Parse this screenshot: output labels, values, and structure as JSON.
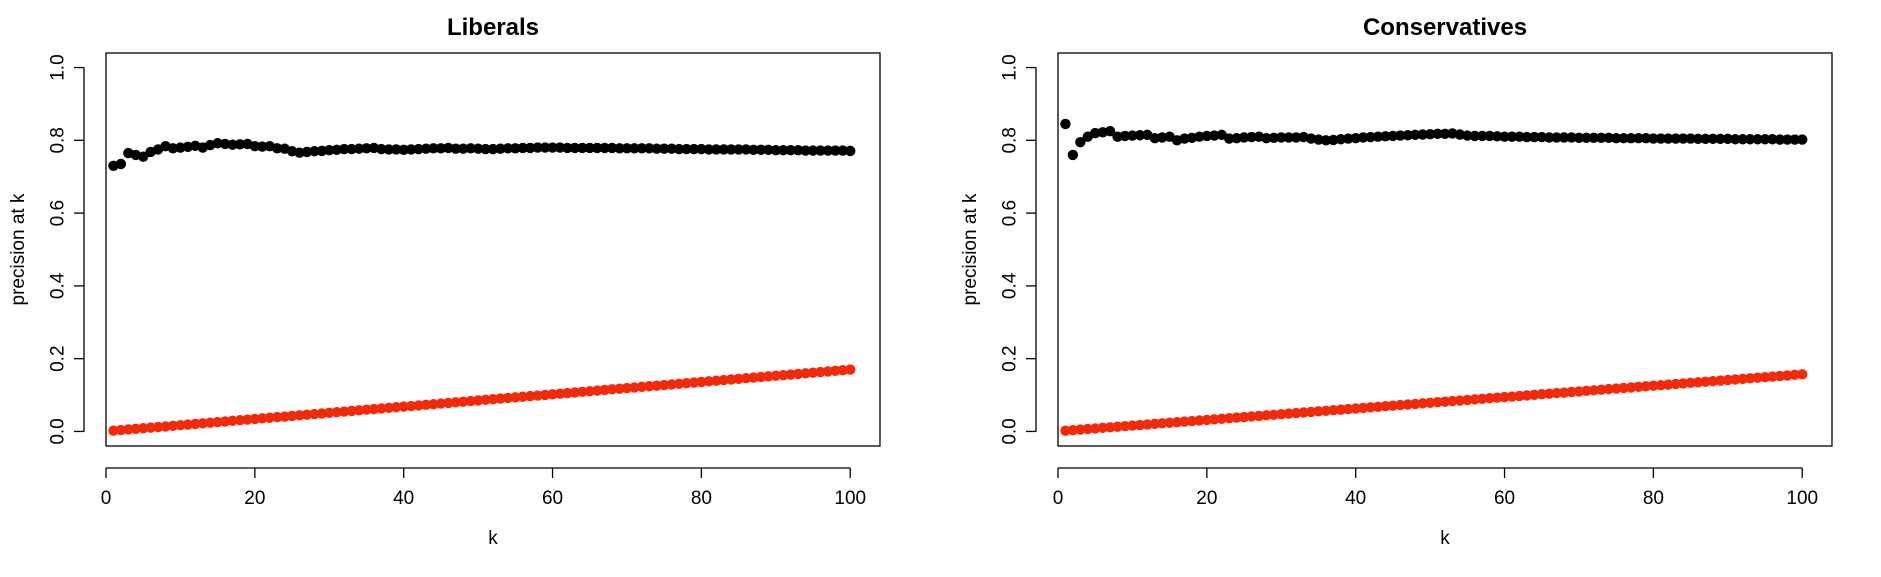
{
  "chart_data": [
    {
      "type": "scatter",
      "title": "Liberals",
      "xlabel": "k",
      "ylabel": "precision at k",
      "xlim": [
        0,
        104
      ],
      "ylim": [
        -0.04,
        1.04
      ],
      "xticks": [
        0,
        20,
        40,
        60,
        80,
        100
      ],
      "xtick_labels": [
        "0",
        "20",
        "40",
        "60",
        "80",
        "100"
      ],
      "yticks": [
        0.0,
        0.2,
        0.4,
        0.6,
        0.8,
        1.0
      ],
      "ytick_labels": [
        "0.0",
        "0.2",
        "0.4",
        "0.6",
        "0.8",
        "1.0"
      ],
      "grid": false,
      "series": [
        {
          "color": "#000000",
          "x": [
            1,
            2,
            3,
            4,
            5,
            6,
            7,
            8,
            9,
            10,
            11,
            12,
            13,
            14,
            15,
            16,
            17,
            18,
            19,
            20,
            21,
            22,
            23,
            24,
            25,
            26,
            27,
            28,
            29,
            30,
            31,
            32,
            33,
            34,
            35,
            36,
            37,
            38,
            39,
            40,
            41,
            42,
            43,
            44,
            45,
            46,
            47,
            48,
            49,
            50,
            51,
            52,
            53,
            54,
            55,
            56,
            57,
            58,
            59,
            60,
            61,
            62,
            63,
            64,
            65,
            66,
            67,
            68,
            69,
            70,
            71,
            72,
            73,
            74,
            75,
            76,
            77,
            78,
            79,
            80,
            81,
            82,
            83,
            84,
            85,
            86,
            87,
            88,
            89,
            90,
            91,
            92,
            93,
            94,
            95,
            96,
            97,
            98,
            99,
            100
          ],
          "values": [
            0.73,
            0.735,
            0.765,
            0.76,
            0.755,
            0.768,
            0.775,
            0.784,
            0.778,
            0.78,
            0.782,
            0.785,
            0.78,
            0.787,
            0.792,
            0.79,
            0.788,
            0.789,
            0.79,
            0.784,
            0.783,
            0.784,
            0.778,
            0.777,
            0.77,
            0.766,
            0.768,
            0.77,
            0.771,
            0.773,
            0.774,
            0.776,
            0.776,
            0.777,
            0.778,
            0.779,
            0.776,
            0.775,
            0.775,
            0.774,
            0.775,
            0.776,
            0.777,
            0.778,
            0.778,
            0.779,
            0.777,
            0.777,
            0.778,
            0.777,
            0.776,
            0.776,
            0.777,
            0.778,
            0.778,
            0.779,
            0.779,
            0.78,
            0.78,
            0.78,
            0.78,
            0.779,
            0.779,
            0.779,
            0.779,
            0.779,
            0.779,
            0.779,
            0.778,
            0.778,
            0.778,
            0.778,
            0.778,
            0.777,
            0.777,
            0.777,
            0.776,
            0.776,
            0.776,
            0.776,
            0.775,
            0.775,
            0.775,
            0.775,
            0.775,
            0.775,
            0.774,
            0.774,
            0.774,
            0.773,
            0.773,
            0.773,
            0.773,
            0.772,
            0.772,
            0.772,
            0.772,
            0.772,
            0.772,
            0.771
          ]
        },
        {
          "color": "#f22a0c",
          "x_start": 1,
          "x_end": 100,
          "y_start": 0.002,
          "y_end": 0.17,
          "count": 100
        }
      ]
    },
    {
      "type": "scatter",
      "title": "Conservatives",
      "xlabel": "k",
      "ylabel": "precision at k",
      "xlim": [
        0,
        104
      ],
      "ylim": [
        -0.04,
        1.04
      ],
      "xticks": [
        0,
        20,
        40,
        60,
        80,
        100
      ],
      "xtick_labels": [
        "0",
        "20",
        "40",
        "60",
        "80",
        "100"
      ],
      "yticks": [
        0.0,
        0.2,
        0.4,
        0.6,
        0.8,
        1.0
      ],
      "ytick_labels": [
        "0.0",
        "0.2",
        "0.4",
        "0.6",
        "0.8",
        "1.0"
      ],
      "grid": false,
      "series": [
        {
          "color": "#000000",
          "x": [
            1,
            2,
            3,
            4,
            5,
            6,
            7,
            8,
            9,
            10,
            11,
            12,
            13,
            14,
            15,
            16,
            17,
            18,
            19,
            20,
            21,
            22,
            23,
            24,
            25,
            26,
            27,
            28,
            29,
            30,
            31,
            32,
            33,
            34,
            35,
            36,
            37,
            38,
            39,
            40,
            41,
            42,
            43,
            44,
            45,
            46,
            47,
            48,
            49,
            50,
            51,
            52,
            53,
            54,
            55,
            56,
            57,
            58,
            59,
            60,
            61,
            62,
            63,
            64,
            65,
            66,
            67,
            68,
            69,
            70,
            71,
            72,
            73,
            74,
            75,
            76,
            77,
            78,
            79,
            80,
            81,
            82,
            83,
            84,
            85,
            86,
            87,
            88,
            89,
            90,
            91,
            92,
            93,
            94,
            95,
            96,
            97,
            98,
            99,
            100
          ],
          "values": [
            0.845,
            0.76,
            0.795,
            0.81,
            0.82,
            0.822,
            0.825,
            0.81,
            0.812,
            0.813,
            0.814,
            0.815,
            0.806,
            0.808,
            0.81,
            0.8,
            0.805,
            0.807,
            0.81,
            0.812,
            0.813,
            0.815,
            0.805,
            0.806,
            0.808,
            0.809,
            0.81,
            0.806,
            0.807,
            0.808,
            0.808,
            0.808,
            0.809,
            0.805,
            0.802,
            0.8,
            0.801,
            0.803,
            0.805,
            0.806,
            0.808,
            0.809,
            0.81,
            0.811,
            0.812,
            0.813,
            0.814,
            0.815,
            0.816,
            0.817,
            0.818,
            0.818,
            0.819,
            0.816,
            0.813,
            0.812,
            0.812,
            0.812,
            0.811,
            0.81,
            0.81,
            0.81,
            0.809,
            0.809,
            0.809,
            0.808,
            0.808,
            0.808,
            0.808,
            0.807,
            0.807,
            0.807,
            0.807,
            0.807,
            0.806,
            0.806,
            0.806,
            0.806,
            0.806,
            0.805,
            0.805,
            0.805,
            0.805,
            0.805,
            0.805,
            0.804,
            0.804,
            0.804,
            0.804,
            0.804,
            0.803,
            0.803,
            0.803,
            0.803,
            0.803,
            0.803,
            0.802,
            0.802,
            0.802,
            0.802
          ]
        },
        {
          "color": "#f22a0c",
          "x_start": 1,
          "x_end": 100,
          "y_start": 0.002,
          "y_end": 0.157,
          "count": 100
        }
      ]
    }
  ]
}
